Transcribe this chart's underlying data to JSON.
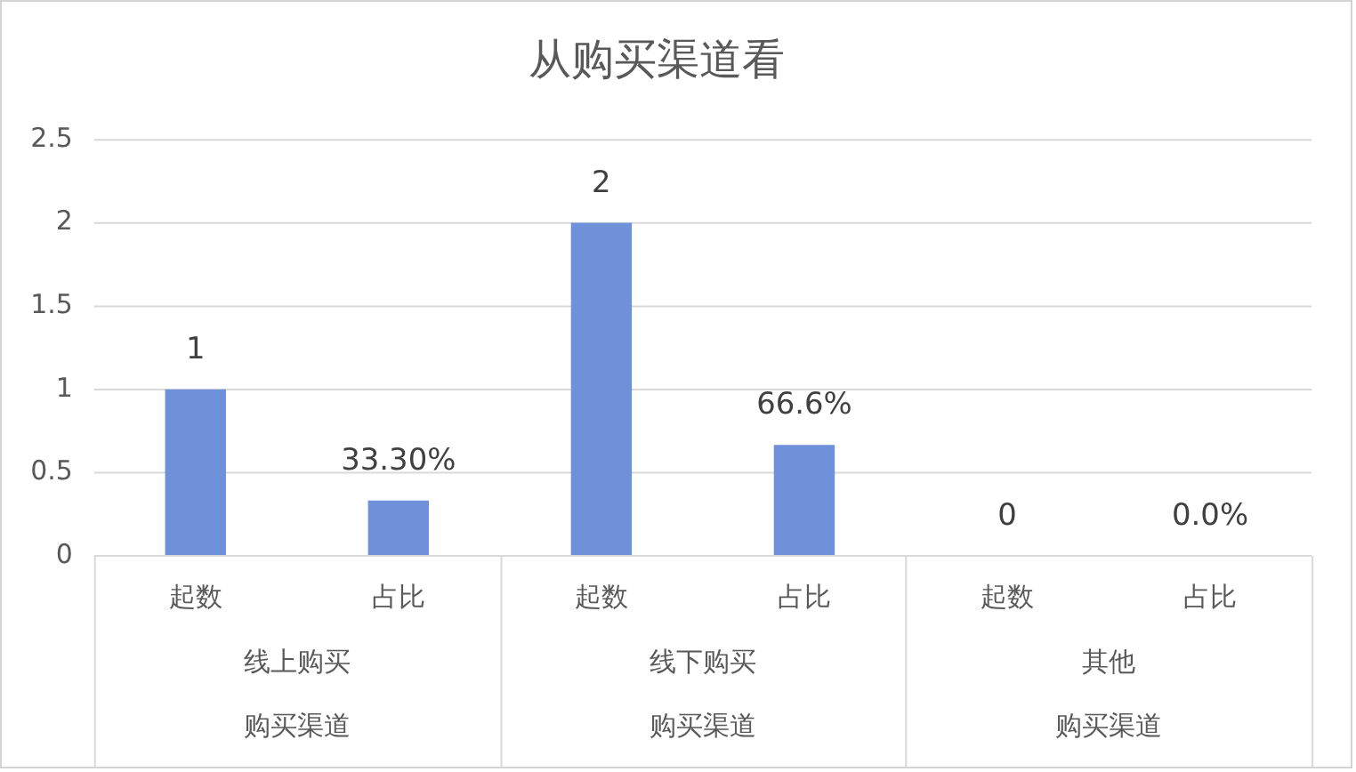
{
  "chart_data": {
    "type": "bar",
    "title": "从购买渠道看",
    "categories": [
      "起数",
      "占比",
      "起数",
      "占比",
      "起数",
      "占比"
    ],
    "values": [
      1,
      0.333,
      2,
      0.666,
      0,
      0
    ],
    "value_labels": [
      "1",
      "33.30%",
      "2",
      "66.6%",
      "0",
      "0.0%"
    ],
    "color": "#6f91da",
    "ylim": [
      0,
      2.5
    ],
    "yticks": [
      0,
      0.5,
      1,
      1.5,
      2,
      2.5
    ],
    "grid": "y",
    "annotations": [
      "线上购买",
      "线下购买",
      "其他",
      "购买渠道",
      "购买渠道",
      "购买渠道"
    ]
  }
}
